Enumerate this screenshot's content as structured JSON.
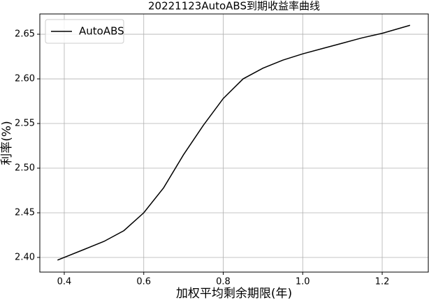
{
  "chart_data": {
    "type": "line",
    "title": "20221123AutoABS到期收益率曲线",
    "x_label": "加权平均剩余期限(年)",
    "y_label": "利率(%)",
    "x": [
      0.383,
      0.45,
      0.5,
      0.55,
      0.6,
      0.65,
      0.7,
      0.75,
      0.8,
      0.85,
      0.9,
      0.95,
      1.0,
      1.05,
      1.1,
      1.15,
      1.2,
      1.27
    ],
    "series": [
      {
        "name": "AutoABS",
        "color": "#000000",
        "values": [
          2.397,
          2.409,
          2.418,
          2.43,
          2.45,
          2.478,
          2.515,
          2.548,
          2.578,
          2.6,
          2.612,
          2.621,
          2.628,
          2.634,
          2.64,
          2.646,
          2.651,
          2.66
        ]
      }
    ],
    "xlim": [
      0.3385,
      1.316
    ],
    "ylim": [
      2.3836,
      2.6727
    ],
    "xticks": [
      0.4,
      0.6,
      0.8,
      {
        "value": 1,
        "label": "1.0"
      },
      1.2
    ],
    "yticks": [
      {
        "value": 2.4,
        "label": "2.40"
      },
      2.45,
      {
        "value": 2.5,
        "label": "2.50"
      },
      2.55,
      {
        "value": 2.6,
        "label": "2.60"
      },
      2.65
    ],
    "grid": true,
    "legend": "upper left"
  }
}
